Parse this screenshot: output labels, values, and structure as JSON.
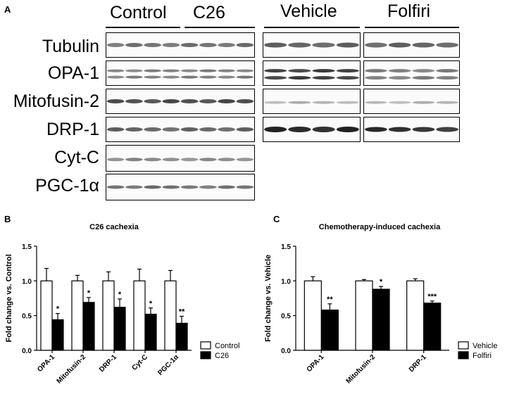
{
  "panel_a": {
    "letter": "A",
    "left_groups": [
      "Control",
      "C26"
    ],
    "right_groups": [
      "Vehicle",
      "Folfiri"
    ],
    "rows": [
      "Tubulin",
      "OPA-1",
      "Mitofusin-2",
      "DRP-1",
      "Cyt-C",
      "PGC-1α"
    ]
  },
  "chart_data": [
    {
      "panel": "B",
      "type": "bar",
      "title": "C26 cachexia",
      "ylabel": "Fold change vs. Control",
      "xlabel": "",
      "ylim": [
        0,
        1.5
      ],
      "yticks": [
        "0.0",
        "0.5",
        "1.0",
        "1.5"
      ],
      "categories": [
        "OPA-1",
        "Mitofusin-2",
        "DRP-1",
        "Cyt-C",
        "PGC-1α"
      ],
      "series": [
        {
          "name": "Control",
          "color": "#ffffff",
          "values": [
            1.0,
            1.0,
            1.0,
            1.0,
            1.0
          ],
          "errors": [
            0.18,
            0.08,
            0.13,
            0.17,
            0.15
          ]
        },
        {
          "name": "C26",
          "color": "#000000",
          "values": [
            0.44,
            0.69,
            0.62,
            0.52,
            0.39
          ],
          "errors": [
            0.09,
            0.07,
            0.12,
            0.09,
            0.1
          ]
        }
      ],
      "significance": [
        "*",
        "*",
        "*",
        "*",
        "**"
      ],
      "legend_position": "right",
      "grid": false
    },
    {
      "panel": "C",
      "type": "bar",
      "title": "Chemotherapy-induced cachexia",
      "ylabel": "Fold change vs. Vehicle",
      "xlabel": "",
      "ylim": [
        0,
        1.5
      ],
      "yticks": [
        "0.0",
        "0.5",
        "1.0",
        "1.5"
      ],
      "categories": [
        "OPA-1",
        "Mitofusin-2",
        "DRP-1"
      ],
      "series": [
        {
          "name": "Vehicle",
          "color": "#ffffff",
          "values": [
            1.0,
            1.0,
            1.0
          ],
          "errors": [
            0.06,
            0.02,
            0.03
          ]
        },
        {
          "name": "Folfiri",
          "color": "#000000",
          "values": [
            0.58,
            0.88,
            0.68
          ],
          "errors": [
            0.09,
            0.04,
            0.03
          ]
        }
      ],
      "significance": [
        "**",
        "*",
        "***"
      ],
      "legend_position": "right",
      "grid": false
    }
  ]
}
